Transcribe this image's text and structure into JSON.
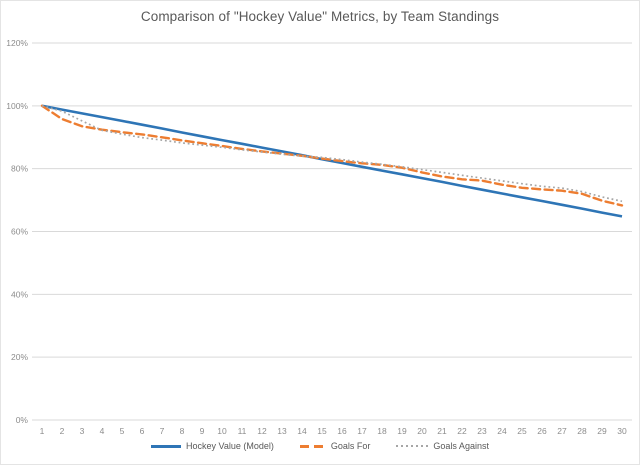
{
  "chart_data": {
    "type": "line",
    "title": "Comparison of \"Hockey Value\" Metrics, by Team Standings",
    "xlabel": "",
    "ylabel": "",
    "categories": [
      1,
      2,
      3,
      4,
      5,
      6,
      7,
      8,
      9,
      10,
      11,
      12,
      13,
      14,
      15,
      16,
      17,
      18,
      19,
      20,
      21,
      22,
      23,
      24,
      25,
      26,
      27,
      28,
      29,
      30
    ],
    "ylim": [
      0,
      120
    ],
    "yticks": [
      0,
      20,
      40,
      60,
      80,
      100,
      120
    ],
    "ytick_labels": [
      "0%",
      "20%",
      "40%",
      "60%",
      "80%",
      "100%",
      "120%"
    ],
    "grid": "horizontal",
    "gridline_color": "#d9d9d9",
    "legend_position": "bottom",
    "series": [
      {
        "name": "Hockey Value (Model)",
        "color": "#2e75b6",
        "line_style": "solid",
        "values": [
          100,
          98.8,
          97.6,
          96.4,
          95.2,
          94.0,
          92.8,
          91.5,
          90.3,
          89.1,
          87.9,
          86.7,
          85.5,
          84.3,
          83.0,
          81.8,
          80.6,
          79.4,
          78.2,
          77.0,
          75.8,
          74.5,
          73.3,
          72.1,
          70.9,
          69.7,
          68.5,
          67.3,
          66.0,
          64.8
        ]
      },
      {
        "name": "Goals For",
        "color": "#ed7d31",
        "line_style": "dashed",
        "values": [
          100,
          95.8,
          93.5,
          92.4,
          91.6,
          90.9,
          90.0,
          89.0,
          88.1,
          87.2,
          86.3,
          85.5,
          84.8,
          84.1,
          83.2,
          82.4,
          81.7,
          81.2,
          80.3,
          78.8,
          77.5,
          76.6,
          76.2,
          74.9,
          73.9,
          73.4,
          73.0,
          72.0,
          69.8,
          68.3
        ]
      },
      {
        "name": "Goals Against",
        "color": "#a6a6a6",
        "line_style": "dotted",
        "values": [
          100,
          98.3,
          95.2,
          92.2,
          91.0,
          89.9,
          89.1,
          88.2,
          87.5,
          86.8,
          86.0,
          85.3,
          84.6,
          84.0,
          83.6,
          82.9,
          82.1,
          81.4,
          80.6,
          79.7,
          78.8,
          77.9,
          77.0,
          76.1,
          75.2,
          74.4,
          73.8,
          72.7,
          71.0,
          69.6
        ]
      }
    ],
    "text_colors": {
      "title": "#595959",
      "axis_labels": "#8c8c8c",
      "legend": "#595959"
    }
  }
}
